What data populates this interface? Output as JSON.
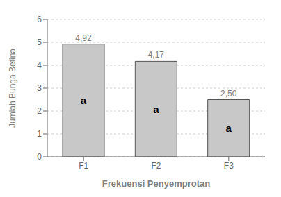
{
  "chart_data": {
    "type": "bar",
    "categories": [
      "F1",
      "F2",
      "F3"
    ],
    "values": [
      4.92,
      4.17,
      2.5
    ],
    "value_labels": [
      "4,92",
      "4,17",
      "2,50"
    ],
    "data_labels": true,
    "annotations": [
      "a",
      "a",
      "a"
    ],
    "color": "#c8c8c8",
    "xlabel": "Frekuensi Penyemprotan",
    "ylabel": "Jumlah Bunga Betina",
    "ylim": [
      0,
      6
    ],
    "yticks": [
      0,
      1,
      2,
      3,
      4,
      5,
      6
    ],
    "grid": true
  }
}
